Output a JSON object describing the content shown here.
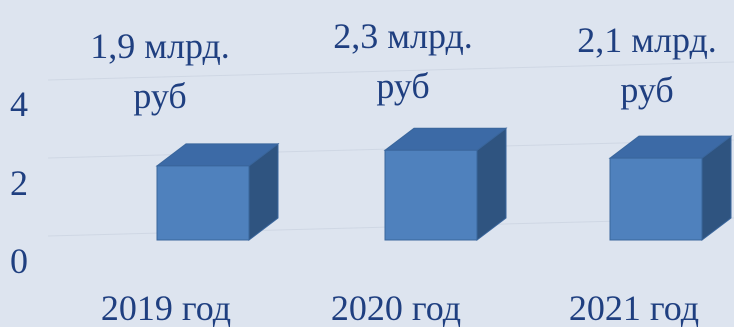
{
  "chart_data": {
    "type": "bar",
    "style": "3d-columns",
    "categories": [
      "2019 год",
      "2020 год",
      "2021 год"
    ],
    "values": [
      1.9,
      2.3,
      2.1
    ],
    "data_labels": [
      [
        "1,9 млрд.",
        "руб"
      ],
      [
        "2,3 млрд.",
        "руб"
      ],
      [
        "2,1 млрд.",
        "руб"
      ]
    ],
    "y_ticks": [
      "0",
      "2",
      "4"
    ],
    "ylim": [
      0,
      4
    ],
    "grid": true,
    "legend": false
  },
  "colors": {
    "background": "#dde4ef",
    "bar_front": "#4f81bd",
    "bar_top": "#3c6aa6",
    "bar_side": "#2f5480",
    "text": "#1f3f80"
  }
}
